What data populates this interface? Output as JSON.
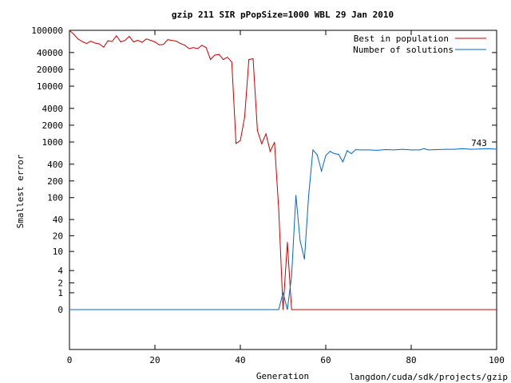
{
  "chart_data": {
    "type": "line",
    "title": "gzip 211 SIR pPopSize=1000 WBL 29 Jan 2010",
    "xlabel": "Generation",
    "ylabel": "Smallest error",
    "footer": "langdon/cuda/sdk/projects/gzip",
    "xlim": [
      0,
      100
    ],
    "x_ticks": [
      0,
      20,
      40,
      60,
      80,
      100
    ],
    "y_scale": "log-like (value+1)",
    "y_ticks": [
      {
        "value": 100000,
        "label": "100000"
      },
      {
        "value": 40000,
        "label": "40000"
      },
      {
        "value": 20000,
        "label": "20000"
      },
      {
        "value": 10000,
        "label": "10000"
      },
      {
        "value": 4000,
        "label": "4000"
      },
      {
        "value": 2000,
        "label": "2000"
      },
      {
        "value": 1000,
        "label": "1000"
      },
      {
        "value": 400,
        "label": "400"
      },
      {
        "value": 200,
        "label": "200"
      },
      {
        "value": 100,
        "label": "100"
      },
      {
        "value": 40,
        "label": "40"
      },
      {
        "value": 20,
        "label": "20"
      },
      {
        "value": 10,
        "label": "10"
      },
      {
        "value": 4,
        "label": "4"
      },
      {
        "value": 2,
        "label": "2"
      },
      {
        "value": 1,
        "label": "1"
      },
      {
        "value": 0,
        "label": "0"
      }
    ],
    "grid": false,
    "legend_position": "top-right",
    "annotations": [
      {
        "text": "743",
        "x": 97,
        "y": 743
      }
    ],
    "series": [
      {
        "name": "Best in population",
        "color": "#cc0000",
        "x": [
          0,
          1,
          2,
          3,
          4,
          5,
          6,
          7,
          8,
          9,
          10,
          11,
          12,
          13,
          14,
          15,
          16,
          17,
          18,
          19,
          20,
          21,
          22,
          23,
          24,
          25,
          26,
          27,
          28,
          29,
          30,
          31,
          32,
          33,
          34,
          35,
          36,
          37,
          38,
          39,
          40,
          41,
          42,
          43,
          44,
          45,
          46,
          47,
          48,
          49,
          50,
          51,
          52,
          53,
          54,
          55,
          60,
          70,
          80,
          90,
          100
        ],
        "values": [
          100000,
          85000,
          70000,
          63000,
          58000,
          64000,
          59000,
          57000,
          50000,
          65000,
          63000,
          80000,
          62000,
          66000,
          78000,
          62000,
          66000,
          61000,
          70000,
          66000,
          62000,
          55000,
          56000,
          68000,
          66000,
          64000,
          58000,
          54000,
          47000,
          49000,
          47000,
          54000,
          49000,
          30000,
          36000,
          37000,
          30000,
          33000,
          27000,
          940,
          1060,
          2800,
          30000,
          31000,
          1600,
          930,
          1400,
          680,
          990,
          60,
          0,
          15,
          0,
          0,
          0,
          0,
          0,
          0,
          0,
          0,
          0
        ]
      },
      {
        "name": "Number of solutions",
        "color": "#0066cc",
        "x": [
          0,
          10,
          20,
          30,
          40,
          48,
          49,
          50,
          51,
          52,
          53,
          54,
          55,
          56,
          57,
          58,
          59,
          60,
          61,
          62,
          63,
          64,
          65,
          66,
          67,
          68,
          69,
          70,
          72,
          74,
          76,
          78,
          80,
          82,
          83,
          84,
          86,
          88,
          90,
          92,
          94,
          96,
          98,
          100
        ],
        "values": [
          0,
          0,
          0,
          0,
          0,
          0,
          0,
          1,
          0,
          3,
          110,
          16,
          7,
          110,
          720,
          590,
          300,
          570,
          680,
          620,
          600,
          440,
          700,
          620,
          730,
          720,
          720,
          720,
          710,
          730,
          720,
          740,
          720,
          720,
          760,
          720,
          730,
          740,
          740,
          760,
          740,
          750,
          760,
          743
        ]
      }
    ]
  }
}
